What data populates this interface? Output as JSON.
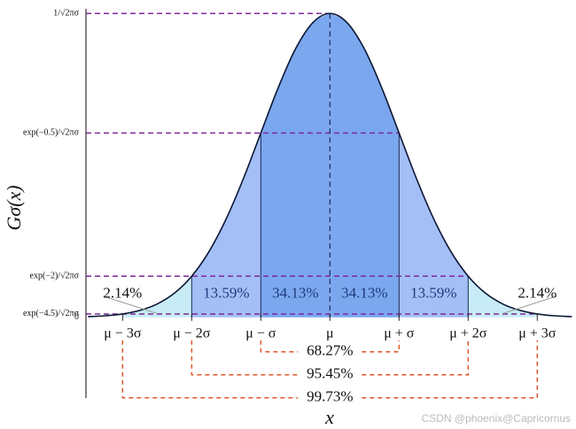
{
  "chart_data": {
    "type": "density",
    "ylabel": "Gσ(x)",
    "xlabel": "x",
    "x": [
      -3.5,
      -3.25,
      -3,
      -2.75,
      -2.5,
      -2.25,
      -2,
      -1.75,
      -1.5,
      -1.25,
      -1,
      -0.75,
      -0.5,
      -0.25,
      0,
      0.25,
      0.5,
      0.75,
      1,
      1.25,
      1.5,
      1.75,
      2,
      2.25,
      2.5,
      2.75,
      3,
      3.25,
      3.5
    ],
    "values": [
      0.0009,
      0.002,
      0.0044,
      0.0091,
      0.0175,
      0.0317,
      0.054,
      0.0863,
      0.1295,
      0.1826,
      0.242,
      0.3011,
      0.3521,
      0.3867,
      0.3989,
      0.3867,
      0.3521,
      0.3011,
      0.242,
      0.1826,
      0.1295,
      0.0863,
      0.054,
      0.0317,
      0.0175,
      0.0091,
      0.0044,
      0.002,
      0.0009
    ],
    "color": "#0b1633",
    "xlim": [
      -3.53,
      3.56
    ],
    "ylim": [
      -0.106,
      0.405
    ],
    "xticks": [
      {
        "value": -3,
        "label": "μ − 3σ"
      },
      {
        "value": -2,
        "label": "μ − 2σ"
      },
      {
        "value": -1,
        "label": "μ − σ"
      },
      {
        "value": 0,
        "label": "μ"
      },
      {
        "value": 1,
        "label": "μ + σ"
      },
      {
        "value": 2,
        "label": "μ + 2σ"
      },
      {
        "value": 3,
        "label": "μ + 3σ"
      }
    ],
    "yticks": [
      {
        "value": 0.3989,
        "label": "1/√2πσ"
      },
      {
        "value": 0.242,
        "label": "exp(−0.5)/√2πσ"
      },
      {
        "value": 0.054,
        "label": "exp(−2)/√2πσ"
      },
      {
        "value": 0.0044,
        "label": "exp(−4.5)/√2πσ"
      },
      0
    ],
    "grid_color": "#7b2a9a",
    "bands": {
      "edges": [
        -3,
        -2,
        -1,
        0,
        1,
        2,
        3
      ],
      "values": [
        2.14,
        13.59,
        34.13,
        34.13,
        13.59,
        2.14
      ],
      "value_labels": [
        "2.14%",
        "13.59%",
        "34.13%",
        "34.13%",
        "13.59%",
        "2.14%"
      ],
      "colors": [
        "#c8ecf6",
        "#a4bff6",
        "#7ba7ef",
        "#7ba7ef",
        "#a4bff6",
        "#c8ecf6"
      ]
    },
    "ranges": {
      "halfwidths": [
        1,
        2,
        3
      ],
      "values": [
        68.27,
        95.45,
        99.73
      ],
      "value_labels": [
        "68.27%",
        "95.45%",
        "99.73%"
      ],
      "color": "#e0572a"
    }
  },
  "watermark": "CSDN @phoenix@Capricornus"
}
